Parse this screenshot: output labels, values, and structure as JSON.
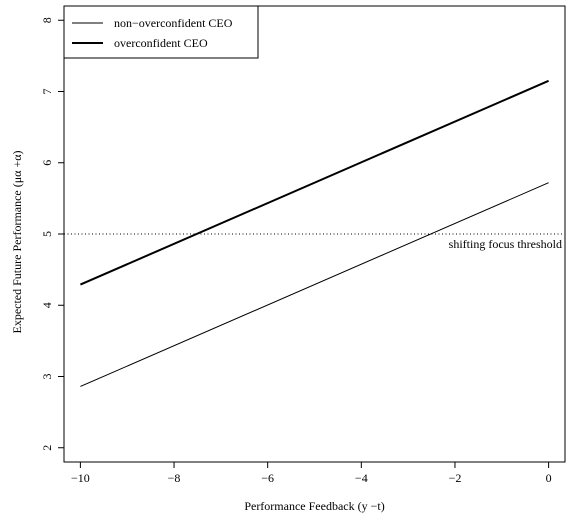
{
  "chart_data": {
    "type": "line",
    "title": "",
    "xlabel": "Performance Feedback (y −t)",
    "ylabel": "Expected Future Performance (μα +α)",
    "xlim": [
      -10.35,
      0.35
    ],
    "ylim": [
      1.8,
      8.2
    ],
    "xticks": [
      -10,
      -8,
      -6,
      -4,
      -2,
      0
    ],
    "xtick_labels": [
      "−10",
      "−8",
      "−6",
      "−4",
      "−2",
      "0"
    ],
    "yticks": [
      2,
      3,
      4,
      5,
      6,
      7,
      8
    ],
    "ytick_labels": [
      "2",
      "3",
      "4",
      "5",
      "6",
      "7",
      "8"
    ],
    "grid": false,
    "legend_position": "top-left",
    "series": [
      {
        "name": "non−overconfident CEO",
        "x": [
          -10,
          0
        ],
        "y": [
          2.86,
          5.72
        ],
        "style": "thin",
        "color": "#000000"
      },
      {
        "name": "overconfident CEO",
        "x": [
          -10,
          0
        ],
        "y": [
          4.29,
          7.15
        ],
        "style": "thick",
        "color": "#000000"
      }
    ],
    "reference_lines": [
      {
        "axis": "y",
        "value": 5,
        "style": "dotted",
        "label": "shifting focus threshold"
      }
    ]
  }
}
